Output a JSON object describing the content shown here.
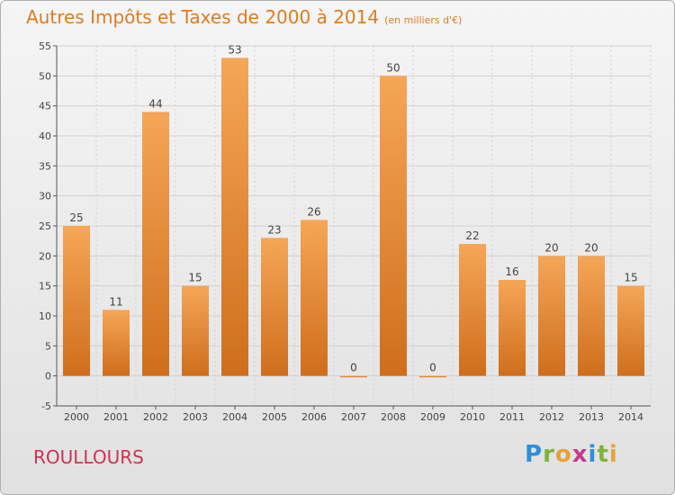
{
  "title": "Autres Impôts et Taxes de 2000 à 2014",
  "title_unit": "(en milliers d'€)",
  "commune": "ROULLOURS",
  "logo": {
    "letters": [
      "P",
      "r",
      "o",
      "x",
      "i",
      "t",
      "i"
    ],
    "colors": [
      "#2f8fd6",
      "#7fb33a",
      "#e6a23c",
      "#c23b8a",
      "#2f8fd6",
      "#7fb33a",
      "#e6a23c"
    ]
  },
  "colors": {
    "bar_light": "#f5a657",
    "bar_dark": "#cf6e1c",
    "axis": "#555555",
    "grid": "#d2d2d2",
    "title": "#e07b22",
    "commune": "#cc3355"
  },
  "chart_data": {
    "type": "bar",
    "title": "Autres Impôts et Taxes de 2000 à 2014",
    "categories": [
      "2000",
      "2001",
      "2002",
      "2003",
      "2004",
      "2005",
      "2006",
      "2007",
      "2008",
      "2009",
      "2010",
      "2011",
      "2012",
      "2013",
      "2014"
    ],
    "values": [
      25,
      11,
      44,
      15,
      53,
      23,
      26,
      0,
      50,
      0,
      22,
      16,
      20,
      20,
      15
    ],
    "ylim": [
      -5,
      55
    ],
    "yticks": [
      -5,
      0,
      5,
      10,
      15,
      20,
      25,
      30,
      35,
      40,
      45,
      50,
      55
    ],
    "grid": true
  }
}
